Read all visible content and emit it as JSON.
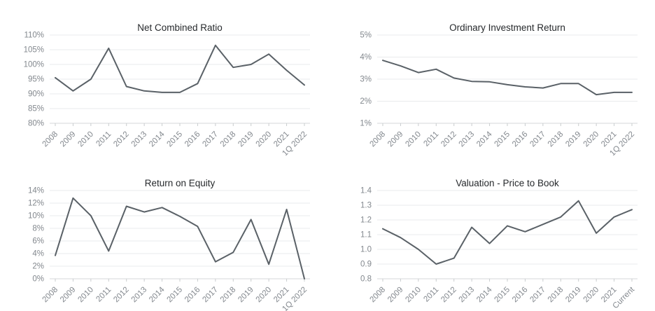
{
  "page": {
    "kind": "financial-metrics-dashboard"
  },
  "colors": {
    "background": "#ffffff",
    "line": "#5a6167",
    "grid": "#e9ebec",
    "axis": "#d4d7d9",
    "tick": "#c9ccce",
    "tick_label": "#83888e",
    "title": "#26292c"
  },
  "chart_data": [
    {
      "type": "line",
      "title": "Net Combined Ratio",
      "x": [
        "2008",
        "2009",
        "2010",
        "2011",
        "2012",
        "2013",
        "2014",
        "2015",
        "2016",
        "2017",
        "2018",
        "2019",
        "2020",
        "2021",
        "1Q 2022"
      ],
      "values": [
        95.5,
        91,
        95,
        105.5,
        92.5,
        91,
        90.5,
        90.5,
        93.5,
        106.5,
        99,
        100,
        103.5,
        98,
        93
      ],
      "ylim": [
        80,
        110
      ],
      "yticks": [
        110,
        105,
        100,
        95,
        90,
        85,
        80
      ],
      "ytick_labels": [
        "110%",
        "105%",
        "100%",
        "95%",
        "90%",
        "85%",
        "80%"
      ],
      "grid": true,
      "legend": "none"
    },
    {
      "type": "line",
      "title": "Ordinary Investment Return",
      "x": [
        "2008",
        "2009",
        "2010",
        "2011",
        "2012",
        "2013",
        "2014",
        "2015",
        "2016",
        "2017",
        "2018",
        "2019",
        "2020",
        "2021",
        "1Q 2022"
      ],
      "values": [
        3.85,
        3.6,
        3.3,
        3.45,
        3.05,
        2.9,
        2.88,
        2.75,
        2.65,
        2.6,
        2.8,
        2.8,
        2.3,
        2.4,
        2.4
      ],
      "ylim": [
        1,
        5
      ],
      "yticks": [
        5,
        4,
        3,
        2,
        1
      ],
      "ytick_labels": [
        "5%",
        "4%",
        "3%",
        "2%",
        "1%"
      ],
      "grid": true,
      "legend": "none"
    },
    {
      "type": "line",
      "title": "Return on Equity",
      "x": [
        "2008",
        "2009",
        "2010",
        "2011",
        "2012",
        "2013",
        "2014",
        "2015",
        "2016",
        "2017",
        "2018",
        "2019",
        "2020",
        "2021",
        "1Q 2022"
      ],
      "values": [
        3.7,
        12.8,
        10,
        4.4,
        11.5,
        10.6,
        11.3,
        9.9,
        8.3,
        2.7,
        4.2,
        9.4,
        2.3,
        11,
        0
      ],
      "ylim": [
        0,
        14
      ],
      "yticks": [
        14,
        12,
        10,
        8,
        6,
        4,
        2,
        0
      ],
      "ytick_labels": [
        "14%",
        "12%",
        "10%",
        "8%",
        "6%",
        "4%",
        "2%",
        "0%"
      ],
      "grid": true,
      "legend": "none"
    },
    {
      "type": "line",
      "title": "Valuation - Price to Book",
      "x": [
        "2008",
        "2009",
        "2010",
        "2011",
        "2012",
        "2013",
        "2014",
        "2015",
        "2016",
        "2017",
        "2018",
        "2019",
        "2020",
        "2021",
        "Current"
      ],
      "values": [
        1.14,
        1.08,
        1.0,
        0.9,
        0.94,
        1.15,
        1.04,
        1.16,
        1.12,
        1.17,
        1.22,
        1.33,
        1.11,
        1.22,
        1.27
      ],
      "ylim": [
        0.8,
        1.4
      ],
      "yticks": [
        1.4,
        1.3,
        1.2,
        1.1,
        1.0,
        0.9,
        0.8
      ],
      "ytick_labels": [
        "1.4",
        "1.3",
        "1.2",
        "1.1",
        "1.0",
        "0.9",
        "0.8"
      ],
      "grid": true,
      "legend": "none"
    }
  ]
}
